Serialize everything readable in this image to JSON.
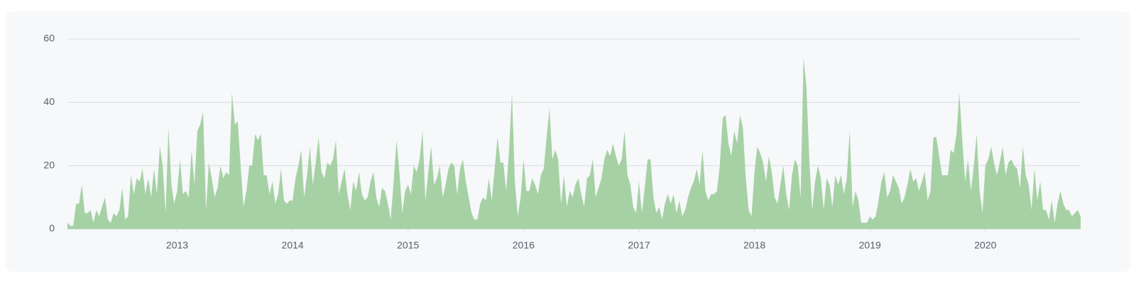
{
  "chart_data": {
    "type": "area",
    "x": [
      2012.05,
      2012.075,
      2012.1,
      2012.125,
      2012.15,
      2012.175,
      2012.2,
      2012.225,
      2012.25,
      2012.275,
      2012.3,
      2012.325,
      2012.35,
      2012.375,
      2012.4,
      2012.425,
      2012.45,
      2012.475,
      2012.5,
      2012.525,
      2012.55,
      2012.575,
      2012.6,
      2012.625,
      2012.65,
      2012.675,
      2012.7,
      2012.725,
      2012.75,
      2012.775,
      2012.8,
      2012.825,
      2012.85,
      2012.875,
      2012.9,
      2012.925,
      2012.95,
      2012.975,
      2013,
      2013.025,
      2013.05,
      2013.075,
      2013.1,
      2013.125,
      2013.15,
      2013.175,
      2013.2,
      2013.225,
      2013.25,
      2013.275,
      2013.3,
      2013.325,
      2013.35,
      2013.375,
      2013.4,
      2013.425,
      2013.45,
      2013.475,
      2013.5,
      2013.525,
      2013.55,
      2013.575,
      2013.6,
      2013.625,
      2013.65,
      2013.675,
      2013.7,
      2013.725,
      2013.75,
      2013.775,
      2013.8,
      2013.825,
      2013.85,
      2013.875,
      2013.9,
      2013.925,
      2013.95,
      2013.975,
      2014,
      2014.025,
      2014.05,
      2014.075,
      2014.1,
      2014.125,
      2014.15,
      2014.175,
      2014.2,
      2014.225,
      2014.25,
      2014.275,
      2014.3,
      2014.325,
      2014.35,
      2014.375,
      2014.4,
      2014.425,
      2014.45,
      2014.475,
      2014.5,
      2014.525,
      2014.55,
      2014.575,
      2014.6,
      2014.625,
      2014.65,
      2014.675,
      2014.7,
      2014.725,
      2014.75,
      2014.775,
      2014.8,
      2014.825,
      2014.85,
      2014.875,
      2014.9,
      2014.925,
      2014.95,
      2014.975,
      2015,
      2015.025,
      2015.05,
      2015.075,
      2015.1,
      2015.125,
      2015.15,
      2015.175,
      2015.2,
      2015.225,
      2015.25,
      2015.275,
      2015.3,
      2015.325,
      2015.35,
      2015.375,
      2015.4,
      2015.425,
      2015.45,
      2015.475,
      2015.5,
      2015.525,
      2015.55,
      2015.575,
      2015.6,
      2015.625,
      2015.65,
      2015.675,
      2015.7,
      2015.725,
      2015.75,
      2015.775,
      2015.8,
      2015.825,
      2015.85,
      2015.875,
      2015.9,
      2015.925,
      2015.95,
      2015.975,
      2016,
      2016.025,
      2016.05,
      2016.075,
      2016.1,
      2016.125,
      2016.15,
      2016.175,
      2016.2,
      2016.225,
      2016.25,
      2016.275,
      2016.3,
      2016.325,
      2016.35,
      2016.375,
      2016.4,
      2016.425,
      2016.45,
      2016.475,
      2016.5,
      2016.525,
      2016.55,
      2016.575,
      2016.6,
      2016.625,
      2016.65,
      2016.675,
      2016.7,
      2016.725,
      2016.75,
      2016.775,
      2016.8,
      2016.825,
      2016.85,
      2016.875,
      2016.9,
      2016.925,
      2016.95,
      2016.975,
      2017,
      2017.025,
      2017.05,
      2017.075,
      2017.1,
      2017.125,
      2017.15,
      2017.175,
      2017.2,
      2017.225,
      2017.25,
      2017.275,
      2017.3,
      2017.325,
      2017.35,
      2017.375,
      2017.4,
      2017.425,
      2017.45,
      2017.475,
      2017.5,
      2017.525,
      2017.55,
      2017.575,
      2017.6,
      2017.625,
      2017.65,
      2017.675,
      2017.7,
      2017.725,
      2017.75,
      2017.775,
      2017.8,
      2017.825,
      2017.85,
      2017.875,
      2017.9,
      2017.925,
      2017.95,
      2017.975,
      2018,
      2018.025,
      2018.05,
      2018.075,
      2018.1,
      2018.125,
      2018.15,
      2018.175,
      2018.2,
      2018.225,
      2018.25,
      2018.275,
      2018.3,
      2018.325,
      2018.35,
      2018.375,
      2018.4,
      2018.425,
      2018.45,
      2018.475,
      2018.5,
      2018.525,
      2018.55,
      2018.575,
      2018.6,
      2018.625,
      2018.65,
      2018.675,
      2018.7,
      2018.725,
      2018.75,
      2018.775,
      2018.8,
      2018.825,
      2018.85,
      2018.875,
      2018.9,
      2018.925,
      2018.95,
      2018.975,
      2019,
      2019.025,
      2019.05,
      2019.075,
      2019.1,
      2019.125,
      2019.15,
      2019.175,
      2019.2,
      2019.225,
      2019.25,
      2019.275,
      2019.3,
      2019.325,
      2019.35,
      2019.375,
      2019.4,
      2019.425,
      2019.45,
      2019.475,
      2019.5,
      2019.525,
      2019.55,
      2019.575,
      2019.6,
      2019.625,
      2019.65,
      2019.675,
      2019.7,
      2019.725,
      2019.75,
      2019.775,
      2019.8,
      2019.825,
      2019.85,
      2019.875,
      2019.9,
      2019.925,
      2019.95,
      2019.975,
      2020,
      2020.025,
      2020.05,
      2020.075,
      2020.1,
      2020.125,
      2020.15,
      2020.175,
      2020.2,
      2020.225,
      2020.25,
      2020.275,
      2020.3,
      2020.325,
      2020.35,
      2020.375,
      2020.4,
      2020.425,
      2020.45,
      2020.475,
      2020.5,
      2020.525,
      2020.55,
      2020.575,
      2020.6,
      2020.625,
      2020.65,
      2020.675,
      2020.7,
      2020.725,
      2020.75,
      2020.775,
      2020.8,
      2020.825
    ],
    "values": [
      2,
      1,
      1,
      8,
      8,
      14,
      5,
      5,
      6,
      2,
      6,
      4,
      7,
      10,
      3,
      2,
      5,
      4,
      6,
      13,
      3,
      4,
      17,
      11,
      16,
      15,
      19,
      11,
      16,
      10,
      19,
      11,
      26,
      20,
      5,
      32,
      14,
      8,
      12,
      22,
      11,
      12,
      10,
      25,
      14,
      31,
      33,
      37,
      6,
      21,
      16,
      10,
      13,
      20,
      16,
      18,
      17,
      43,
      33,
      34,
      20,
      7,
      12,
      20,
      20,
      30,
      28,
      30,
      17,
      17,
      11,
      15,
      8,
      11,
      19,
      9,
      8,
      9,
      9,
      16,
      20,
      25,
      10,
      17,
      26,
      14,
      21,
      29,
      18,
      16,
      21,
      20,
      22,
      28,
      11,
      15,
      19,
      11,
      6,
      15,
      12,
      18,
      11,
      9,
      10,
      15,
      18,
      10,
      7,
      13,
      12,
      8,
      3,
      15,
      28,
      18,
      5,
      12,
      14,
      11,
      20,
      18,
      22,
      31,
      9,
      18,
      26,
      14,
      16,
      20,
      10,
      14,
      19,
      21,
      20,
      11,
      19,
      22,
      15,
      10,
      5,
      3,
      3,
      8,
      10,
      9,
      16,
      9,
      19,
      29,
      21,
      21,
      12,
      25,
      43,
      15,
      4,
      10,
      22,
      12,
      12,
      16,
      14,
      11,
      17,
      19,
      29,
      38,
      22,
      25,
      22,
      8,
      17,
      7,
      12,
      10,
      14,
      16,
      11,
      7,
      16,
      17,
      22,
      10,
      13,
      16,
      22,
      25,
      23,
      27,
      23,
      20,
      22,
      31,
      17,
      14,
      7,
      5,
      15,
      5,
      13,
      22,
      22,
      10,
      5,
      7,
      3,
      8,
      11,
      8,
      11,
      5,
      9,
      4,
      6,
      10,
      13,
      15,
      19,
      14,
      25,
      12,
      9,
      11,
      11,
      12,
      20,
      35,
      36,
      27,
      23,
      31,
      27,
      36,
      32,
      16,
      6,
      4,
      18,
      26,
      24,
      21,
      15,
      23,
      18,
      10,
      8,
      14,
      20,
      11,
      6,
      17,
      22,
      20,
      10,
      54,
      45,
      22,
      6,
      15,
      20,
      16,
      6,
      16,
      14,
      7,
      17,
      14,
      17,
      11,
      16,
      31,
      7,
      12,
      9,
      2,
      2,
      2,
      4,
      3,
      4,
      9,
      15,
      18,
      10,
      12,
      17,
      15,
      13,
      8,
      10,
      14,
      19,
      15,
      16,
      12,
      15,
      18,
      9,
      12,
      29,
      29,
      23,
      17,
      17,
      17,
      25,
      24,
      30,
      43,
      28,
      15,
      22,
      12,
      20,
      30,
      12,
      5,
      20,
      22,
      26,
      21,
      17,
      21,
      26,
      17,
      21,
      22,
      20,
      19,
      13,
      26,
      17,
      14,
      6,
      19,
      9,
      15,
      6,
      6,
      3,
      9,
      2,
      8,
      12,
      8,
      6,
      6,
      4,
      5,
      6,
      4
    ],
    "color": "#a6d1a4",
    "xlim": [
      2012.05,
      2020.825
    ],
    "xticks": [
      2013,
      2014,
      2015,
      2016,
      2017,
      2018,
      2019,
      2020
    ],
    "ylim": [
      0,
      60
    ],
    "yticks": [
      0,
      20,
      40,
      60
    ],
    "grid": true
  }
}
